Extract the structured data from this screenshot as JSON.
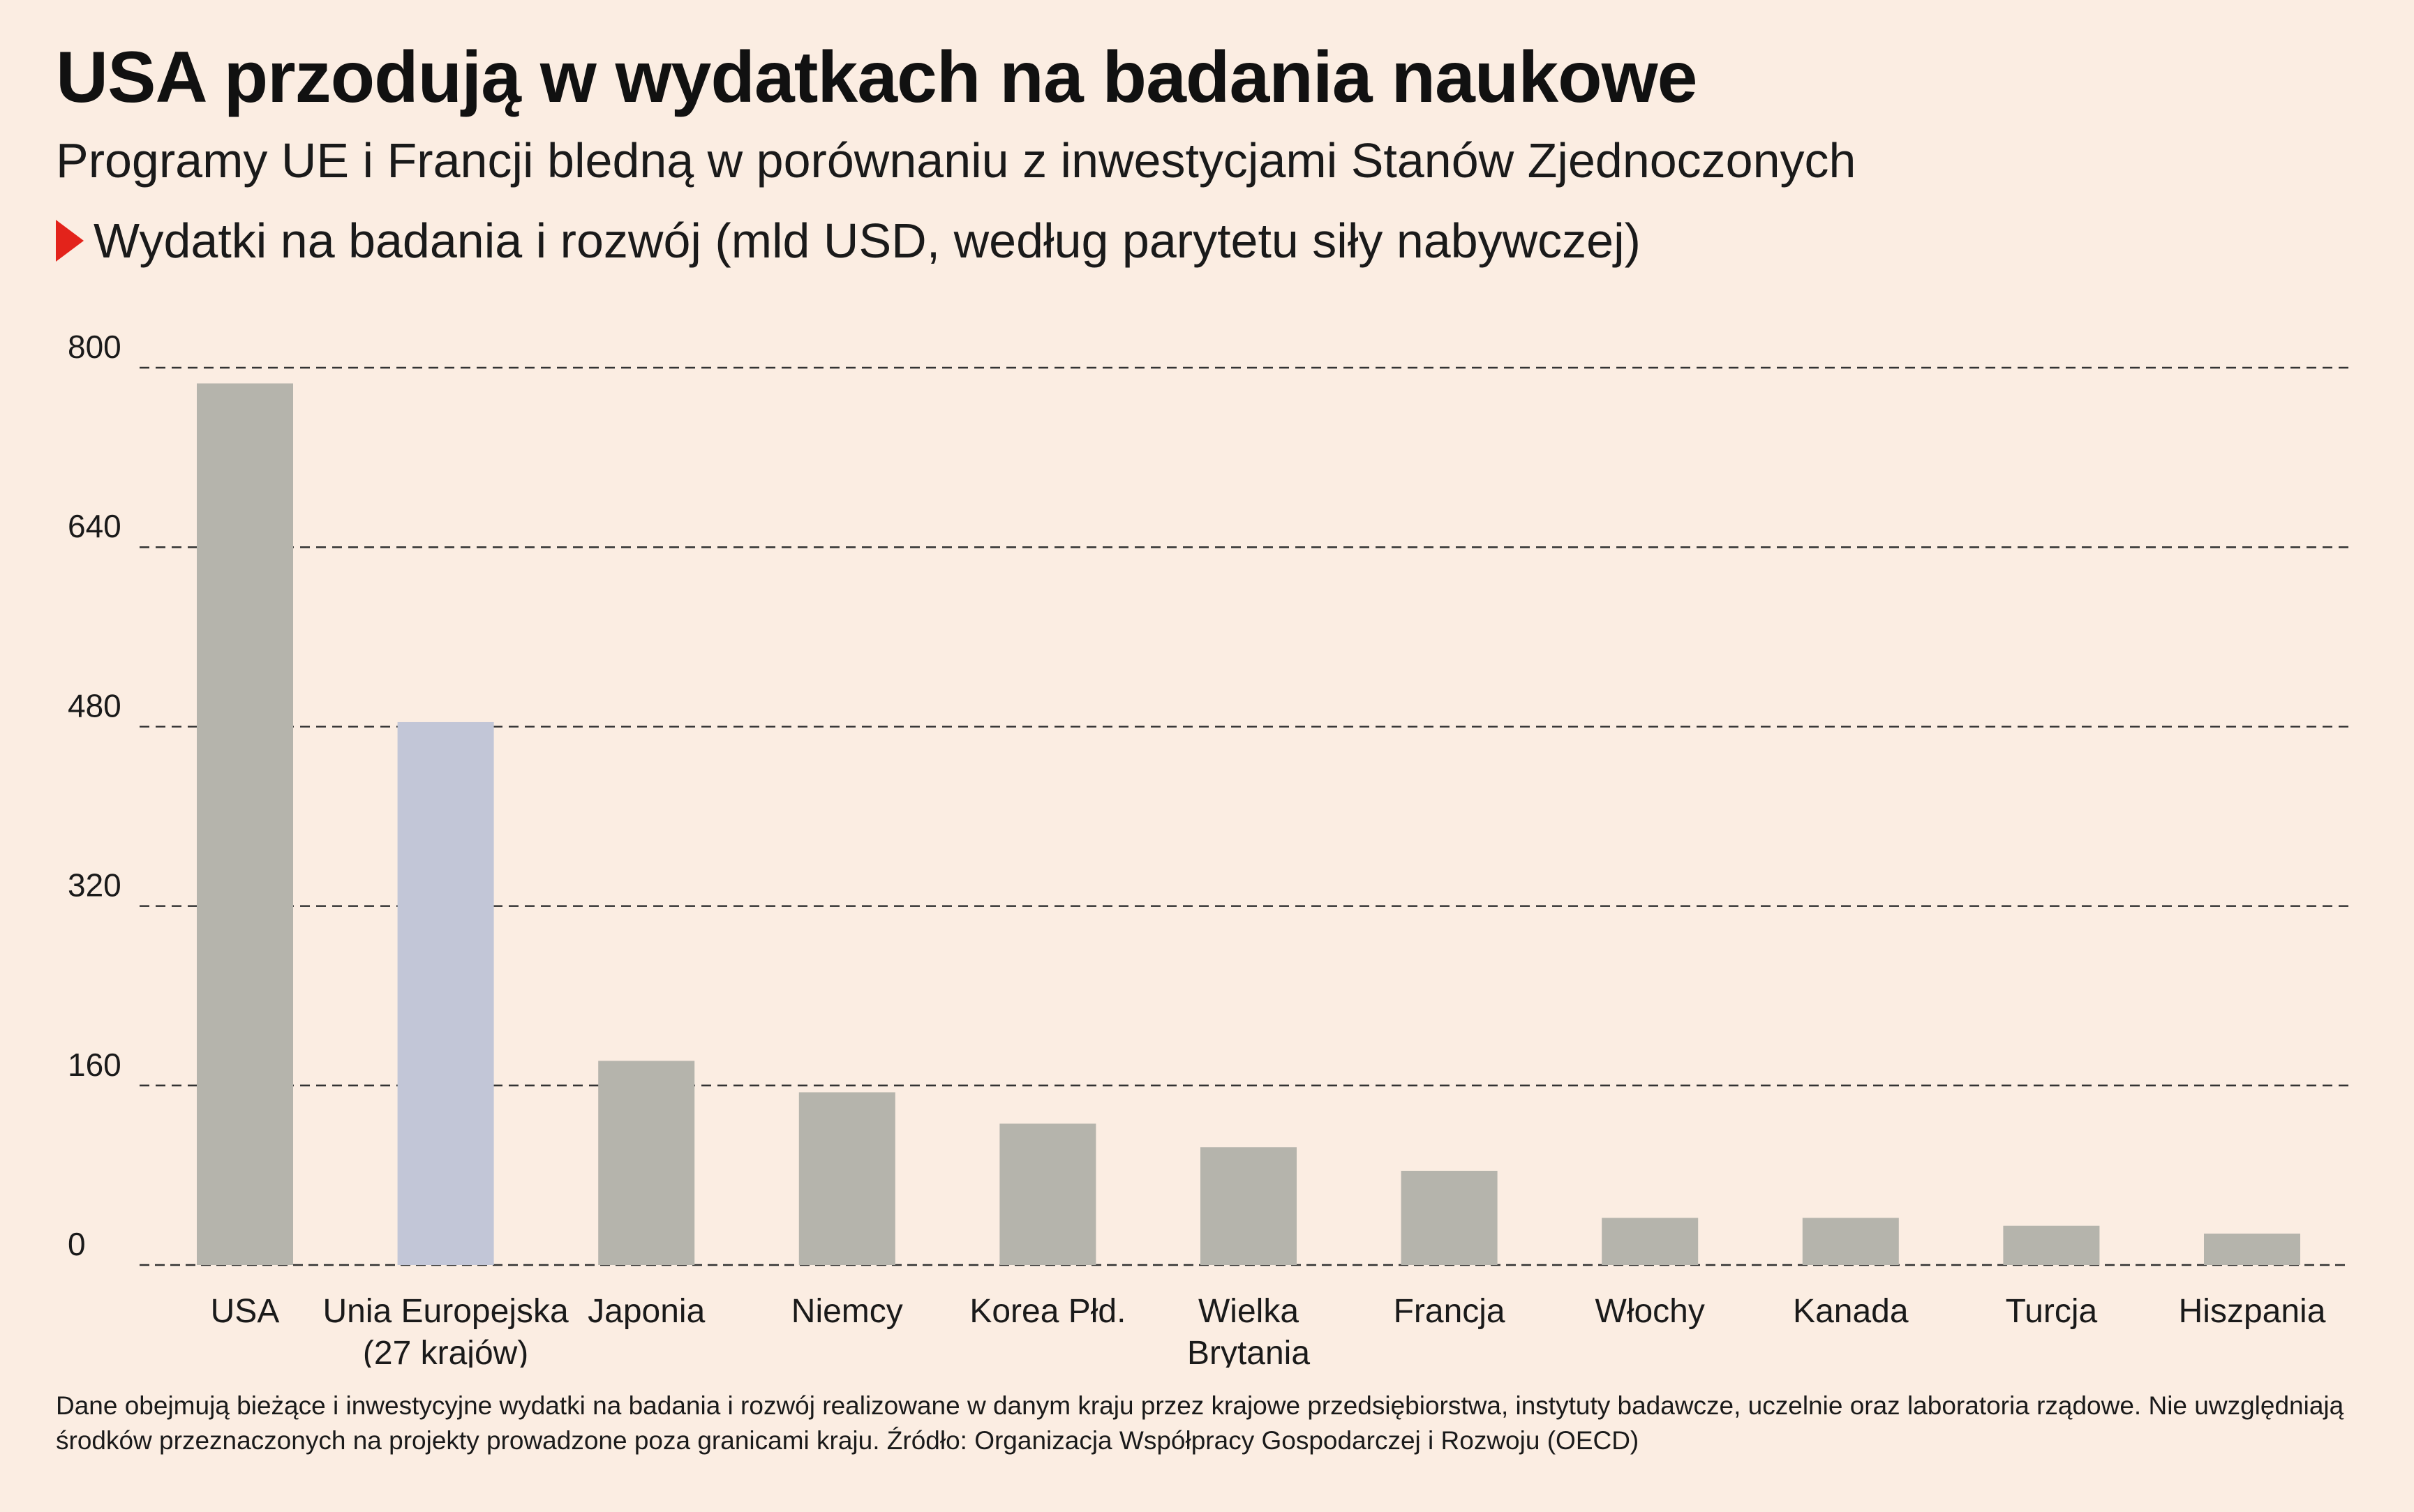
{
  "header": {
    "title": "USA przodują w wydatkach na badania naukowe",
    "subtitle": "Programy UE i Francji bledną w porównaniu z inwestycjami Stanów Zjednoczonych",
    "series_label": "Wydatki na badania i rozwój (mld USD, według parytetu siły nabywczej)"
  },
  "colors": {
    "bar_default": "#b5b4ac",
    "bar_highlight": "#c2c6d7",
    "marker": "#e3231b",
    "grid": "#333333",
    "background": "#fbede2"
  },
  "chart_data": {
    "type": "bar",
    "categories": [
      [
        "USA"
      ],
      [
        "Unia Europejska",
        "(27 krajów)"
      ],
      [
        "Japonia"
      ],
      [
        "Niemcy"
      ],
      [
        "Korea Płd."
      ],
      [
        "Wielka",
        "Brytania"
      ],
      [
        "Francja"
      ],
      [
        "Włochy"
      ],
      [
        "Kanada"
      ],
      [
        "Turcja"
      ],
      [
        "Hiszpania"
      ]
    ],
    "values": [
      786,
      484,
      182,
      154,
      126,
      105,
      84,
      42,
      42,
      35,
      28
    ],
    "highlight_index": 1,
    "yticks": [
      0,
      160,
      320,
      480,
      640,
      800
    ],
    "ylim": [
      0,
      800
    ],
    "grid": true,
    "grid_style": "dashed"
  },
  "footnote": "Dane obejmują bieżące i inwestycyjne wydatki na badania i rozwój realizowane w danym kraju przez krajowe przedsiębiorstwa, instytuty badawcze, uczelnie oraz laboratoria rządowe. Nie uwzględniają środków przeznaczonych na projekty prowadzone poza granicami kraju. Źródło: Organizacja Współpracy Gospodarczej i Rozwoju (OECD)"
}
